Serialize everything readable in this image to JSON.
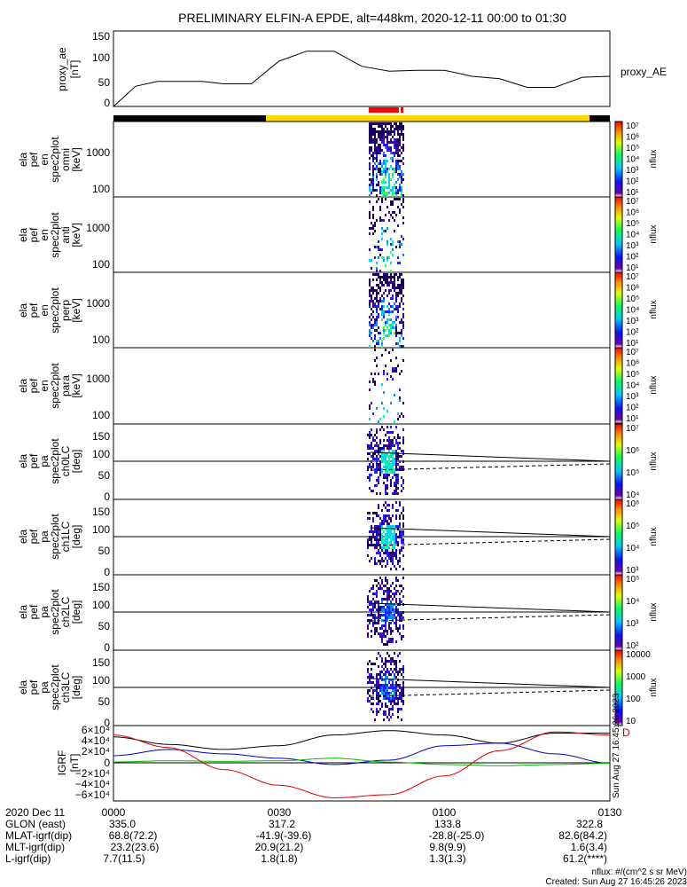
{
  "title": "PRELIMINARY ELFIN-A EPDE, alt=448km, 2020-12-11 00:00 to 01:30",
  "colors": {
    "bar_black": "#000000",
    "bar_yellow": "#ffd800",
    "bar_red": "#ff0000"
  },
  "chart_data": [
    {
      "type": "line",
      "ylabel_lines": [
        "proxy_ae",
        "[nT]"
      ],
      "series_label": "proxy_AE",
      "yticks": [
        "0",
        "50",
        "100",
        "150"
      ],
      "ylim": [
        0,
        150
      ],
      "x": [
        0,
        4,
        8,
        12,
        16,
        20,
        25,
        30,
        35,
        40,
        45,
        50,
        55,
        60,
        65,
        70,
        75,
        80,
        85,
        90
      ],
      "values": [
        0,
        40,
        50,
        50,
        50,
        45,
        45,
        90,
        110,
        110,
        80,
        70,
        72,
        72,
        60,
        55,
        38,
        38,
        58,
        60
      ]
    },
    {
      "type": "heatmap",
      "panels": [
        {
          "ylabel_lines": [
            "ela",
            "pef",
            "en",
            "spec2plot",
            "omni",
            "[keV]"
          ],
          "yticks": [
            "100",
            "1000"
          ],
          "cb_ticks": [
            "10⁷",
            "10⁶",
            "10⁵",
            "10⁴",
            "10³",
            "10²",
            "10¹"
          ],
          "cb_label": "nflux"
        },
        {
          "ylabel_lines": [
            "ela",
            "pef",
            "en",
            "spec2plot",
            "anti",
            "[keV]"
          ],
          "yticks": [
            "100",
            "1000"
          ],
          "cb_ticks": [
            "10⁷",
            "10⁶",
            "10⁵",
            "10⁴",
            "10³",
            "10²",
            "10¹"
          ],
          "cb_label": "nflux"
        },
        {
          "ylabel_lines": [
            "ela",
            "pef",
            "en",
            "spec2plot",
            "perp",
            "[keV]"
          ],
          "yticks": [
            "100",
            "1000"
          ],
          "cb_ticks": [
            "10⁷",
            "10⁶",
            "10⁵",
            "10⁴",
            "10³",
            "10²",
            "10¹"
          ],
          "cb_label": "nflux"
        },
        {
          "ylabel_lines": [
            "ela",
            "pef",
            "en",
            "spec2plot",
            "para",
            "[keV]"
          ],
          "yticks": [
            "100",
            "1000"
          ],
          "cb_ticks": [
            "10⁷",
            "10⁶",
            "10⁵",
            "10⁴",
            "10³",
            "10²",
            "10¹"
          ],
          "cb_label": "nflux"
        },
        {
          "ylabel_lines": [
            "ela",
            "pef",
            "pa",
            "spec2plot",
            "ch0LC",
            "[deg]"
          ],
          "yticks": [
            "0",
            "50",
            "100",
            "150"
          ],
          "cb_ticks": [
            "10⁷",
            "10⁶",
            "10⁵",
            "10⁴"
          ],
          "cb_label": "nflux"
        },
        {
          "ylabel_lines": [
            "ela",
            "pef",
            "pa",
            "spec2plot",
            "ch1LC",
            "[deg]"
          ],
          "yticks": [
            "0",
            "50",
            "100",
            "150"
          ],
          "cb_ticks": [
            "10⁶",
            "10⁵",
            "10⁴",
            "10³"
          ],
          "cb_label": "nflux"
        },
        {
          "ylabel_lines": [
            "ela",
            "pef",
            "pa",
            "spec2plot",
            "ch2LC",
            "[deg]"
          ],
          "yticks": [
            "0",
            "50",
            "100",
            "150"
          ],
          "cb_ticks": [
            "10⁵",
            "10⁴",
            "10³",
            "10²"
          ],
          "cb_label": "nflux"
        },
        {
          "ylabel_lines": [
            "ela",
            "pef",
            "pa",
            "spec2plot",
            "ch3LC",
            "[deg]"
          ],
          "yticks": [
            "0",
            "50",
            "100",
            "150"
          ],
          "cb_ticks": [
            "10000",
            "1000",
            "100",
            "10"
          ],
          "cb_label": "nflux"
        }
      ]
    },
    {
      "type": "line",
      "ylabel_lines": [
        "IGRF",
        "[nT]"
      ],
      "yticks": [
        "6×10⁴",
        "4×10⁴",
        "2×10⁴",
        "0",
        "−2×10⁴",
        "−4×10⁴",
        "−6×10⁴"
      ],
      "ylim": [
        -60000,
        60000
      ],
      "series": [
        {
          "color": "#000000",
          "x": [
            0,
            10,
            20,
            30,
            40,
            50,
            60,
            70,
            80,
            90
          ],
          "values": [
            42000,
            30000,
            22000,
            28000,
            45000,
            52000,
            45000,
            32000,
            48000,
            48000
          ]
        },
        {
          "color": "#0000cc",
          "x": [
            0,
            10,
            20,
            30,
            40,
            50,
            60,
            70,
            80,
            90
          ],
          "values": [
            12000,
            22000,
            15000,
            8000,
            -2000,
            5000,
            28000,
            32000,
            15000,
            0
          ]
        },
        {
          "color": "#00bb00",
          "x": [
            0,
            10,
            20,
            30,
            40,
            50,
            60,
            70,
            80,
            90
          ],
          "values": [
            2000,
            4000,
            3000,
            4000,
            8000,
            2000,
            -2000,
            -4000,
            -2000,
            0
          ]
        },
        {
          "color": "#dd0000",
          "x": [
            0,
            10,
            20,
            30,
            40,
            50,
            60,
            70,
            80,
            90
          ],
          "values": [
            45000,
            25000,
            -10000,
            -35000,
            -55000,
            -50000,
            -20000,
            20000,
            50000,
            45000
          ]
        }
      ]
    }
  ],
  "time_labels": [
    "0000",
    "0030",
    "0100",
    "0130"
  ],
  "ephemeris": [
    {
      "label": "2020 Dec 11",
      "values": [
        "0000",
        "0030",
        "0100",
        "0130"
      ]
    },
    {
      "label": "GLON (east)",
      "values": [
        "335.0",
        "317.2",
        "133.8",
        "322.8"
      ]
    },
    {
      "label": "MLAT-igrf(dip)",
      "values": [
        "68.8(72.2)",
        "-41.9(-39.6)",
        "-28.8(-25.0)",
        "82.6(84.2)"
      ]
    },
    {
      "label": "MLT-igrf(dip)",
      "values": [
        "23.2(23.6)",
        "20.9(21.2)",
        "9.8(9.9)",
        "1.6(3.4)"
      ]
    },
    {
      "label": "L-igrf(dip)",
      "values": [
        "7.7(11.5)",
        "1.8(1.8)",
        "1.3(1.3)",
        "61.2(****)"
      ]
    }
  ],
  "footer": {
    "units": "nflux: #/(cm^2 s sr MeV)",
    "created": "Created: Sun Aug 27 16:45:26 2023",
    "side_stamp": "Sun Aug 27 16:45:26 2023"
  }
}
